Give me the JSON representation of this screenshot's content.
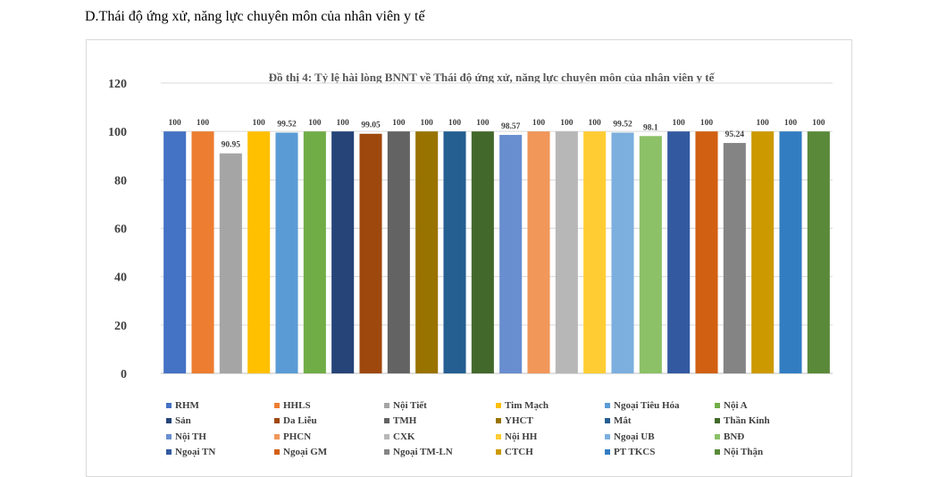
{
  "page": {
    "heading": "D.Thái độ ứng xử, năng lực chuyên môn của nhân viên y tế"
  },
  "chart_data": {
    "type": "bar",
    "title": "Đồ thị 4: Tỷ lệ hài lòng BNNT về Thái độ ứng xử, năng lực chuyên môn của nhân viên y tế",
    "xlabel": "",
    "ylabel": "",
    "ylim": [
      0,
      120
    ],
    "yticks": [
      0,
      20,
      40,
      60,
      80,
      100,
      120
    ],
    "grid": true,
    "legend": "bottom",
    "categories": [
      "RHM",
      "HHLS",
      "Nội Tiết",
      "Tim Mạch",
      "Ngoại Tiêu Hóa",
      "Nội A",
      "Sản",
      "Da Liễu",
      "TMH",
      "YHCT",
      "Mắt",
      "Thần Kinh",
      " Nội TH",
      "PHCN",
      "CXK",
      "Nội HH",
      "Ngoại UB",
      "BNĐ",
      "Ngoại TN",
      "Ngoại GM",
      "Ngoại TM-LN",
      "CTCH",
      "PT TKCS",
      "Nội Thận"
    ],
    "values": [
      100,
      100,
      90.95,
      100,
      99.52,
      100,
      100,
      99.05,
      100,
      100,
      100,
      100,
      98.57,
      100,
      100,
      100,
      99.52,
      98.1,
      100,
      100,
      95.24,
      100,
      100,
      100
    ],
    "labels": [
      "100",
      "100",
      "90.95",
      "100",
      "99.52",
      "100",
      "100",
      "99.05",
      "100",
      "100",
      "100",
      "100",
      "98.57",
      "100",
      "100",
      "100",
      "99.52",
      "98.1",
      "100",
      "100",
      "95.24",
      "100",
      "100",
      "100"
    ],
    "colors": [
      "#4472c4",
      "#ed7d31",
      "#a5a5a5",
      "#ffc000",
      "#5b9bd5",
      "#70ad47",
      "#264478",
      "#9e480e",
      "#636363",
      "#997300",
      "#255e91",
      "#43682b",
      "#698ed0",
      "#f1975a",
      "#b7b7b7",
      "#ffcd33",
      "#7cafdd",
      "#8cc168",
      "#335aa1",
      "#d26012",
      "#848484",
      "#cc9a00",
      "#327dc2",
      "#5a8a39"
    ]
  }
}
